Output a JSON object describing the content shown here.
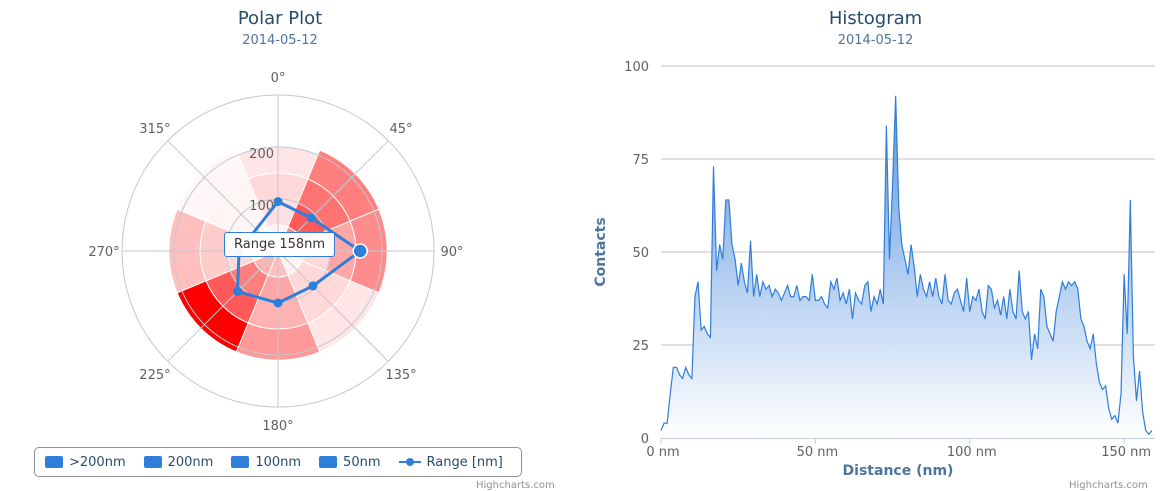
{
  "polar": {
    "title": "Polar Plot",
    "subtitle": "2014-05-12",
    "credits": "Highcharts.com",
    "tooltip": "Range 158nm",
    "legend": [
      {
        "label": ">200nm",
        "kind": "box"
      },
      {
        "label": "200nm",
        "kind": "box"
      },
      {
        "label": "100nm",
        "kind": "box"
      },
      {
        "label": "50nm",
        "kind": "box"
      },
      {
        "label": "Range [nm]",
        "kind": "line"
      }
    ]
  },
  "histogram": {
    "title": "Histogram",
    "subtitle": "2014-05-12",
    "credits": "Highcharts.com"
  },
  "chart_data": [
    {
      "type": "polar",
      "title": "Polar Plot",
      "subtitle": "2014-05-12",
      "angle_ticks": [
        "0°",
        "45°",
        "90°",
        "135°",
        "180°",
        "225°",
        "270°",
        "315°"
      ],
      "radial_ticks": [
        {
          "value": 100,
          "label": "100"
        },
        {
          "value": 200,
          "label": "200"
        }
      ],
      "rmax": 300,
      "colors": {
        "heat_base": "#ff0000",
        "line": "#2f7ed8",
        "grid": "#c0c8d0"
      },
      "sector_edges": [
        [
          0,
          50,
          100,
          150,
          200
        ],
        [
          0,
          50,
          100,
          150,
          210
        ],
        [
          0,
          50,
          100,
          150,
          210
        ],
        [
          0,
          50,
          100,
          150,
          210
        ],
        [
          0,
          50,
          100,
          150,
          210
        ],
        [
          0,
          50,
          100,
          150,
          210
        ],
        [
          0,
          50,
          100,
          150,
          210
        ],
        [
          0,
          50,
          100,
          150,
          210
        ]
      ],
      "sector_intensity": [
        [
          0.05,
          0.12,
          0.15,
          0.1
        ],
        [
          0.45,
          0.65,
          0.55,
          0.5
        ],
        [
          0.1,
          0.15,
          0.35,
          0.45
        ],
        [
          0.05,
          0.15,
          0.15,
          0.1
        ],
        [
          0.25,
          0.35,
          0.3,
          0.4
        ],
        [
          0.3,
          0.5,
          0.65,
          1.0
        ],
        [
          0.05,
          0.15,
          0.2,
          0.25
        ],
        [
          0.02,
          0.03,
          0.04,
          0.03
        ]
      ],
      "series": [
        {
          "name": "Range [nm]",
          "angles": [
            0,
            45,
            90,
            135,
            180,
            225,
            270
          ],
          "values": [
            95,
            90,
            158,
            95,
            100,
            110,
            75
          ]
        }
      ],
      "legend": [
        ">200nm",
        "200nm",
        "100nm",
        "50nm",
        "Range [nm]"
      ]
    },
    {
      "type": "area",
      "title": "Histogram",
      "subtitle": "2014-05-12",
      "xlabel": "Distance (nm)",
      "ylabel": "Contacts",
      "xlim": [
        0,
        160
      ],
      "ylim": [
        0,
        100
      ],
      "xticks": [
        {
          "value": 0,
          "label": "0 nm"
        },
        {
          "value": 50,
          "label": "50 nm"
        },
        {
          "value": 100,
          "label": "100 nm"
        },
        {
          "value": 150,
          "label": "150 nm"
        }
      ],
      "yticks": [
        {
          "value": 0,
          "label": "0"
        },
        {
          "value": 25,
          "label": "25"
        },
        {
          "value": 50,
          "label": "50"
        },
        {
          "value": 75,
          "label": "75"
        },
        {
          "value": 100,
          "label": "100"
        }
      ],
      "colors": {
        "line": "#2f7ed8",
        "fill_top": "#5b95e0",
        "fill_bottom": "#ffffff",
        "grid": "#c0c0c0"
      },
      "series": [
        {
          "name": "Contacts",
          "x": [
            0,
            1,
            2,
            3,
            4,
            5,
            6,
            7,
            8,
            9,
            10,
            11,
            12,
            13,
            14,
            15,
            16,
            17,
            18,
            19,
            20,
            21,
            22,
            23,
            24,
            25,
            26,
            27,
            28,
            29,
            30,
            31,
            32,
            33,
            34,
            35,
            36,
            37,
            38,
            39,
            40,
            41,
            42,
            43,
            44,
            45,
            46,
            47,
            48,
            49,
            50,
            51,
            52,
            53,
            54,
            55,
            56,
            57,
            58,
            59,
            60,
            61,
            62,
            63,
            64,
            65,
            66,
            67,
            68,
            69,
            70,
            71,
            72,
            73,
            74,
            75,
            76,
            77,
            78,
            79,
            80,
            81,
            82,
            83,
            84,
            85,
            86,
            87,
            88,
            89,
            90,
            91,
            92,
            93,
            94,
            95,
            96,
            97,
            98,
            99,
            100,
            101,
            102,
            103,
            104,
            105,
            106,
            107,
            108,
            109,
            110,
            111,
            112,
            113,
            114,
            115,
            116,
            117,
            118,
            119,
            120,
            121,
            122,
            123,
            124,
            125,
            126,
            127,
            128,
            129,
            130,
            131,
            132,
            133,
            134,
            135,
            136,
            137,
            138,
            139,
            140,
            141,
            142,
            143,
            144,
            145,
            146,
            147,
            148,
            149,
            150,
            151,
            152,
            153,
            154,
            155,
            156,
            157,
            158,
            159
          ],
          "values": [
            2,
            4,
            4,
            12,
            19,
            19,
            17,
            16,
            19,
            17,
            16,
            38,
            42,
            29,
            30,
            28,
            27,
            73,
            45,
            52,
            48,
            64,
            64,
            52,
            48,
            41,
            47,
            42,
            39,
            53,
            38,
            44,
            38,
            42,
            40,
            41,
            38,
            40,
            39,
            37,
            39,
            41,
            38,
            38,
            41,
            37,
            38,
            38,
            37,
            44,
            37,
            37,
            38,
            36,
            35,
            42,
            40,
            43,
            37,
            39,
            36,
            40,
            32,
            39,
            37,
            36,
            41,
            42,
            34,
            38,
            36,
            40,
            36,
            84,
            48,
            68,
            92,
            62,
            52,
            48,
            44,
            52,
            46,
            38,
            44,
            40,
            38,
            42,
            38,
            43,
            38,
            36,
            44,
            37,
            36,
            39,
            40,
            37,
            34,
            43,
            34,
            38,
            37,
            40,
            34,
            32,
            41,
            40,
            35,
            37,
            33,
            38,
            32,
            40,
            34,
            32,
            45,
            34,
            32,
            34,
            21,
            28,
            24,
            40,
            38,
            30,
            28,
            26,
            34,
            38,
            42,
            40,
            42,
            41,
            42,
            40,
            32,
            30,
            26,
            24,
            28,
            20,
            15,
            13,
            14,
            8,
            5,
            6,
            4,
            12,
            44,
            28,
            64,
            22,
            10,
            18,
            7,
            2,
            1,
            2
          ]
        }
      ]
    }
  ]
}
